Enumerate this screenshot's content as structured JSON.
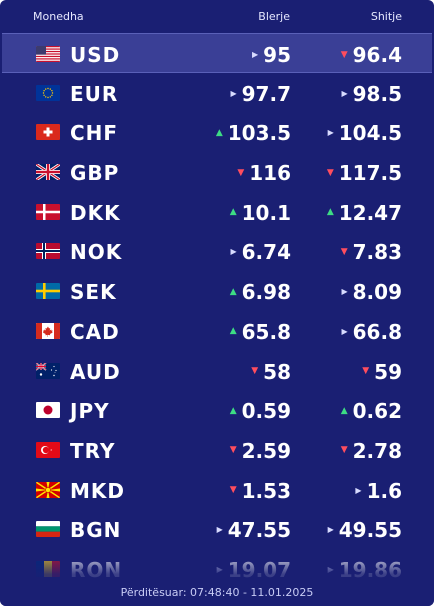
{
  "header": {
    "currency_label": "Monedha",
    "buy_label": "Blerje",
    "sell_label": "Shitje"
  },
  "rates": [
    {
      "code": "USD",
      "flag": "us-flag-icon",
      "buy": "95",
      "buy_trend": "neutral",
      "sell": "96.4",
      "sell_trend": "down"
    },
    {
      "code": "EUR",
      "flag": "eu-flag-icon",
      "buy": "97.7",
      "buy_trend": "neutral",
      "sell": "98.5",
      "sell_trend": "neutral"
    },
    {
      "code": "CHF",
      "flag": "ch-flag-icon",
      "buy": "103.5",
      "buy_trend": "up",
      "sell": "104.5",
      "sell_trend": "neutral"
    },
    {
      "code": "GBP",
      "flag": "gb-flag-icon",
      "buy": "116",
      "buy_trend": "down",
      "sell": "117.5",
      "sell_trend": "down"
    },
    {
      "code": "DKK",
      "flag": "dk-flag-icon",
      "buy": "10.1",
      "buy_trend": "up",
      "sell": "12.47",
      "sell_trend": "up"
    },
    {
      "code": "NOK",
      "flag": "no-flag-icon",
      "buy": "6.74",
      "buy_trend": "neutral",
      "sell": "7.83",
      "sell_trend": "down"
    },
    {
      "code": "SEK",
      "flag": "se-flag-icon",
      "buy": "6.98",
      "buy_trend": "up",
      "sell": "8.09",
      "sell_trend": "neutral"
    },
    {
      "code": "CAD",
      "flag": "ca-flag-icon",
      "buy": "65.8",
      "buy_trend": "up",
      "sell": "66.8",
      "sell_trend": "neutral"
    },
    {
      "code": "AUD",
      "flag": "au-flag-icon",
      "buy": "58",
      "buy_trend": "down",
      "sell": "59",
      "sell_trend": "down"
    },
    {
      "code": "JPY",
      "flag": "jp-flag-icon",
      "buy": "0.59",
      "buy_trend": "up",
      "sell": "0.62",
      "sell_trend": "up"
    },
    {
      "code": "TRY",
      "flag": "tr-flag-icon",
      "buy": "2.59",
      "buy_trend": "down",
      "sell": "2.78",
      "sell_trend": "down"
    },
    {
      "code": "MKD",
      "flag": "mk-flag-icon",
      "buy": "1.53",
      "buy_trend": "down",
      "sell": "1.6",
      "sell_trend": "neutral"
    },
    {
      "code": "BGN",
      "flag": "bg-flag-icon",
      "buy": "47.55",
      "buy_trend": "neutral",
      "sell": "49.55",
      "sell_trend": "neutral"
    },
    {
      "code": "RON",
      "flag": "ro-flag-icon",
      "buy": "19.07",
      "buy_trend": "neutral",
      "sell": "19.86",
      "sell_trend": "neutral"
    }
  ],
  "footer": {
    "updated_text": "Përditësuar: 07:48:40 - 11.01.2025"
  },
  "colors": {
    "background": "#1a1f73",
    "highlight_row": "#3a3f96",
    "up": "#3ddc84",
    "down": "#ff4d5e"
  }
}
